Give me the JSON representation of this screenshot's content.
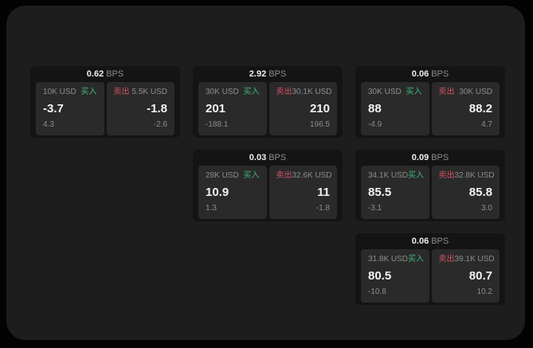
{
  "colors": {
    "page_bg": "#030303",
    "window_bg": "#1d1d1d",
    "card_bg": "#141414",
    "panel_bg": "#2a2a2a",
    "buy_green": "#3fb77a",
    "sell_red": "#d25264",
    "value_text": "#f2f2f2",
    "muted_text": "#8d8d8d"
  },
  "cards": [
    {
      "bps": "0.62",
      "unit": "BPS",
      "buy": {
        "amount": "10K USD",
        "label": "买入",
        "value": "-3.7",
        "change": "4.3"
      },
      "sell": {
        "label": "卖出",
        "amount": "5.5K USD",
        "value": "-1.8",
        "change": "-2.6"
      }
    },
    {
      "bps": "2.92",
      "unit": "BPS",
      "buy": {
        "amount": "30K USD",
        "label": "买入",
        "value": "201",
        "change": "-188.1"
      },
      "sell": {
        "label": "卖出",
        "amount": "30.1K USD",
        "value": "210",
        "change": "196.5"
      }
    },
    {
      "bps": "0.06",
      "unit": "BPS",
      "buy": {
        "amount": "30K USD",
        "label": "买入",
        "value": "88",
        "change": "-4.9"
      },
      "sell": {
        "label": "卖出",
        "amount": "30K USD",
        "value": "88.2",
        "change": "4.7"
      }
    },
    {
      "bps": "0.03",
      "unit": "BPS",
      "buy": {
        "amount": "28K USD",
        "label": "买入",
        "value": "10.9",
        "change": "1.3"
      },
      "sell": {
        "label": "卖出",
        "amount": "32.6K USD",
        "value": "11",
        "change": "-1.8"
      }
    },
    {
      "bps": "0.09",
      "unit": "BPS",
      "buy": {
        "amount": "34.1K USD",
        "label": "买入",
        "value": "85.5",
        "change": "-3.1"
      },
      "sell": {
        "label": "卖出",
        "amount": "32.8K USD",
        "value": "85.8",
        "change": "3.0"
      }
    },
    {
      "bps": "0.06",
      "unit": "BPS",
      "buy": {
        "amount": "31.8K USD",
        "label": "买入",
        "value": "80.5",
        "change": "-10.8"
      },
      "sell": {
        "label": "卖出",
        "amount": "39.1K USD",
        "value": "80.7",
        "change": "10.2"
      }
    }
  ]
}
